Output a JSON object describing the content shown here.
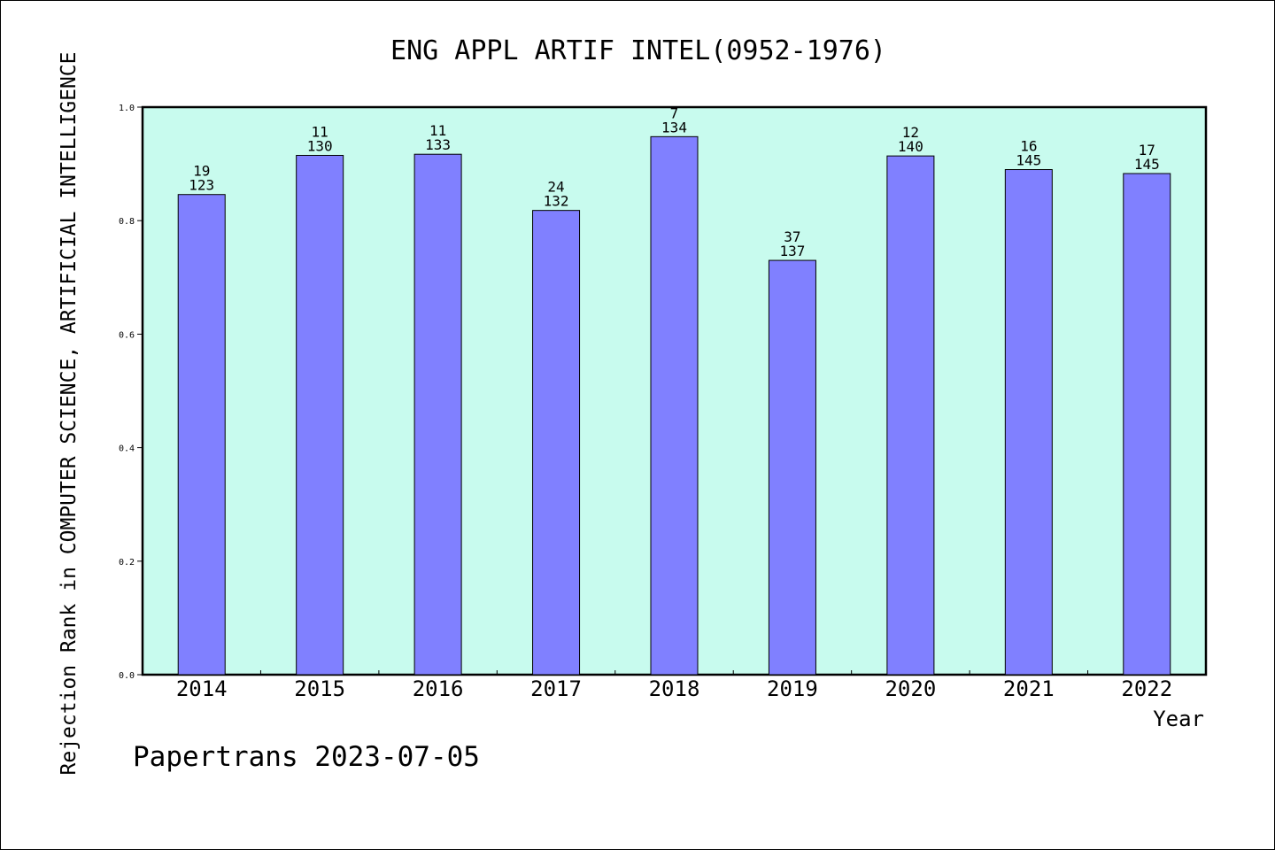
{
  "chart_data": {
    "type": "bar",
    "title": "ENG APPL ARTIF INTEL(0952-1976)",
    "xlabel": "Year",
    "ylabel": "Rejection Rank in COMPUTER SCIENCE, ARTIFICIAL INTELLIGENCE",
    "ylim": [
      0,
      1.0
    ],
    "yticks": [
      "0.0",
      "0.2",
      "0.4",
      "0.6",
      "0.8",
      "1.0"
    ],
    "categories": [
      "2014",
      "2015",
      "2016",
      "2017",
      "2018",
      "2019",
      "2020",
      "2021",
      "2022"
    ],
    "values": [
      0.846,
      0.915,
      0.917,
      0.818,
      0.948,
      0.73,
      0.914,
      0.89,
      0.883
    ],
    "labels_top": [
      "19",
      "11",
      "11",
      "24",
      "7",
      "37",
      "12",
      "16",
      "17"
    ],
    "labels_bottom": [
      "123",
      "130",
      "133",
      "132",
      "134",
      "137",
      "140",
      "145",
      "145"
    ],
    "grid": false,
    "colors": {
      "plot_background": "#c8fbee",
      "bar_fill": "#8080ff",
      "bar_stroke": "#000000"
    }
  },
  "footer": "Papertrans 2023-07-05"
}
